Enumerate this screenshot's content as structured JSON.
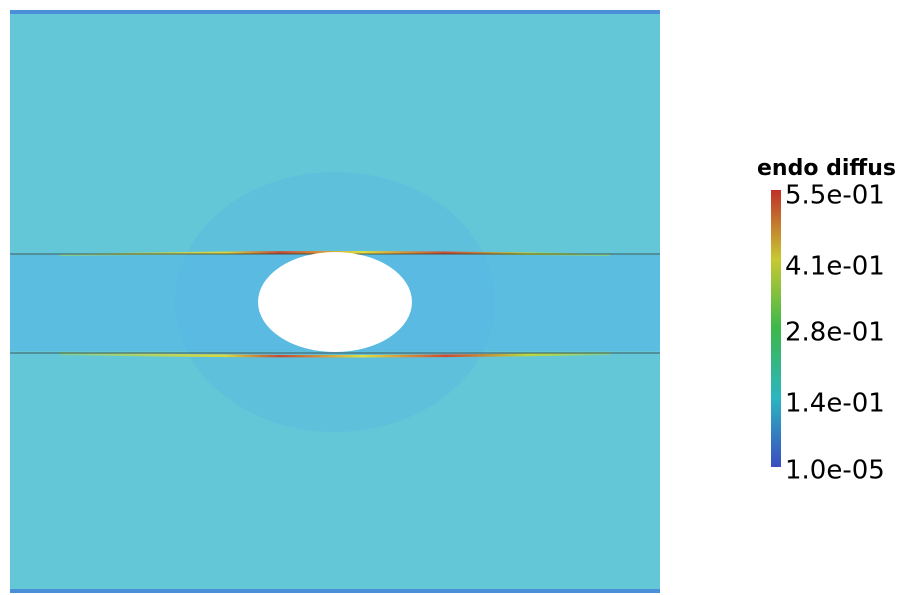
{
  "legend": {
    "title": "endo diffus",
    "labels": [
      "5.5e-01",
      "4.1e-01",
      "2.8e-01",
      "1.4e-01",
      "1.0e-05"
    ]
  }
}
